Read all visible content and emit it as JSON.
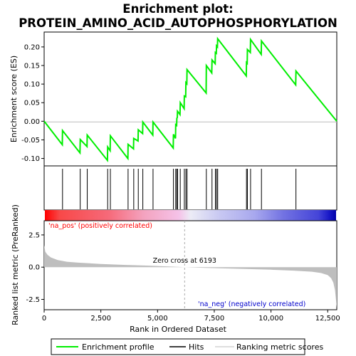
{
  "title_line1": "Enrichment plot:",
  "title_line2": "PROTEIN_AMINO_ACID_AUTOPHOSPHORYLATION",
  "colors": {
    "enrichment_line": "#00ee00",
    "hits": "#000000",
    "metric_fill": "#bebebe",
    "pos_label": "#ff0000",
    "neg_label": "#0000cc",
    "zero_line": "#aaaaaa"
  },
  "chart_data": {
    "type": "line",
    "x_range": [
      0,
      12900
    ],
    "x_ticks": [
      0,
      2500,
      5000,
      7500,
      10000,
      12500
    ],
    "x_tick_labels": [
      "0",
      "2,500",
      "5,000",
      "7,500",
      "10,000",
      "12,500"
    ],
    "xlabel": "Rank in Ordered Dataset",
    "enrichment": {
      "ylabel": "Enrichment score (ES)",
      "ylim": [
        -0.12,
        0.24
      ],
      "y_ticks": [
        -0.1,
        -0.05,
        0.0,
        0.05,
        0.1,
        0.15,
        0.2
      ],
      "y_tick_labels": [
        "-0.10",
        "-0.05",
        "0.00",
        "0.05",
        "0.10",
        "0.15",
        "0.20"
      ],
      "hits": [
        810,
        1590,
        1900,
        2800,
        2920,
        3700,
        3950,
        4150,
        4350,
        4800,
        5700,
        5800,
        5850,
        5880,
        6000,
        6180,
        6250,
        6300,
        7150,
        7400,
        7550,
        7600,
        7650,
        8920,
        8960,
        9100,
        9580,
        11100
      ],
      "es_points": [
        [
          0,
          0.0
        ],
        [
          800,
          -0.063
        ],
        [
          810,
          -0.025
        ],
        [
          1580,
          -0.085
        ],
        [
          1590,
          -0.049
        ],
        [
          1890,
          -0.068
        ],
        [
          1900,
          -0.037
        ],
        [
          2790,
          -0.105
        ],
        [
          2800,
          -0.069
        ],
        [
          2910,
          -0.079
        ],
        [
          2920,
          -0.039
        ],
        [
          3690,
          -0.1
        ],
        [
          3700,
          -0.062
        ],
        [
          3940,
          -0.074
        ],
        [
          3950,
          -0.046
        ],
        [
          4140,
          -0.053
        ],
        [
          4150,
          -0.023
        ],
        [
          4340,
          -0.033
        ],
        [
          4350,
          -0.002
        ],
        [
          4790,
          -0.037
        ],
        [
          4800,
          -0.002
        ],
        [
          5690,
          -0.072
        ],
        [
          5700,
          -0.035
        ],
        [
          5790,
          -0.046
        ],
        [
          5800,
          -0.009
        ],
        [
          5840,
          -0.011
        ],
        [
          5850,
          0.008
        ],
        [
          5870,
          0.01
        ],
        [
          5880,
          0.027
        ],
        [
          5990,
          0.018
        ],
        [
          6000,
          0.05
        ],
        [
          6170,
          0.034
        ],
        [
          6180,
          0.068
        ],
        [
          6240,
          0.066
        ],
        [
          6250,
          0.104
        ],
        [
          6290,
          0.101
        ],
        [
          6300,
          0.139
        ],
        [
          7140,
          0.076
        ],
        [
          7150,
          0.15
        ],
        [
          7390,
          0.13
        ],
        [
          7400,
          0.165
        ],
        [
          7540,
          0.155
        ],
        [
          7550,
          0.185
        ],
        [
          7590,
          0.183
        ],
        [
          7600,
          0.203
        ],
        [
          7640,
          0.2
        ],
        [
          7650,
          0.222
        ],
        [
          8910,
          0.122
        ],
        [
          8920,
          0.158
        ],
        [
          8950,
          0.156
        ],
        [
          8960,
          0.193
        ],
        [
          9090,
          0.185
        ],
        [
          9100,
          0.22
        ],
        [
          9570,
          0.18
        ],
        [
          9580,
          0.216
        ],
        [
          11090,
          0.098
        ],
        [
          11100,
          0.135
        ],
        [
          12900,
          0.0
        ]
      ]
    },
    "ranked_metric": {
      "ylabel": "Ranked list metric (PreRanked)",
      "ylim": [
        -3.3,
        3.6
      ],
      "y_ticks": [
        -2.5,
        0.0,
        2.5
      ],
      "y_tick_labels": [
        "-2.5",
        "0.0",
        "2.5"
      ],
      "zero_cross_rank": 6193,
      "zero_cross_label": "Zero cross at 6193",
      "pos_label": "'na_pos' (positively correlated)",
      "neg_label": "'na_neg' (negatively correlated)",
      "curve_points": [
        [
          0,
          1.7
        ],
        [
          50,
          1.2
        ],
        [
          150,
          0.95
        ],
        [
          300,
          0.75
        ],
        [
          600,
          0.55
        ],
        [
          1000,
          0.42
        ],
        [
          1500,
          0.35
        ],
        [
          2500,
          0.25
        ],
        [
          3500,
          0.18
        ],
        [
          4500,
          0.12
        ],
        [
          5500,
          0.05
        ],
        [
          6193,
          0.0
        ],
        [
          7000,
          -0.05
        ],
        [
          8000,
          -0.1
        ],
        [
          9000,
          -0.15
        ],
        [
          10000,
          -0.2
        ],
        [
          11000,
          -0.27
        ],
        [
          11800,
          -0.35
        ],
        [
          12200,
          -0.45
        ],
        [
          12500,
          -0.62
        ],
        [
          12650,
          -0.85
        ],
        [
          12750,
          -1.2
        ],
        [
          12820,
          -1.8
        ],
        [
          12870,
          -2.6
        ],
        [
          12900,
          -3.15
        ]
      ]
    },
    "legend": [
      {
        "key": "enrichment",
        "label": "Enrichment profile"
      },
      {
        "key": "hits",
        "label": "Hits"
      },
      {
        "key": "metric",
        "label": "Ranking metric scores"
      }
    ]
  }
}
